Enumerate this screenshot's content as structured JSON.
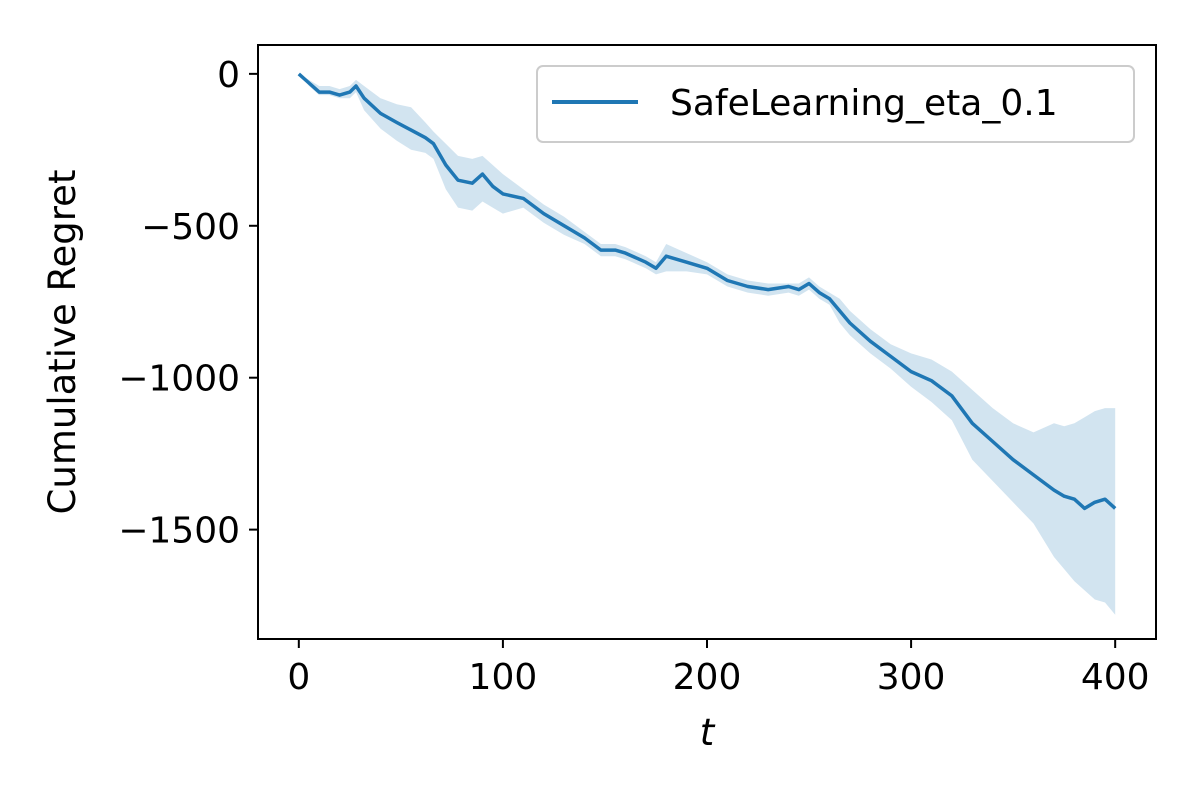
{
  "chart_data": {
    "type": "line",
    "title": "",
    "xlabel": "t",
    "ylabel": "Cumulative Regret",
    "xlim": [
      -20,
      420
    ],
    "ylim": [
      -1860,
      95
    ],
    "xticks": [
      0,
      100,
      200,
      300,
      400
    ],
    "xtick_labels": [
      "0",
      "100",
      "200",
      "300",
      "400"
    ],
    "yticks": [
      0,
      -500,
      -1000,
      -1500
    ],
    "ytick_labels": [
      "0",
      "−500",
      "−1000",
      "−1500"
    ],
    "grid": false,
    "legend_position": "top-right",
    "series": [
      {
        "name": "SafeLearning_eta_0.1",
        "color": "#1f77b4",
        "band_color": "#1f77b4",
        "band_opacity": 0.2,
        "x": [
          0,
          5,
          10,
          15,
          20,
          25,
          28,
          32,
          40,
          48,
          55,
          62,
          66,
          72,
          78,
          85,
          90,
          95,
          100,
          110,
          120,
          130,
          140,
          148,
          155,
          160,
          170,
          175,
          180,
          190,
          200,
          210,
          220,
          230,
          240,
          245,
          250,
          255,
          260,
          265,
          270,
          280,
          290,
          300,
          310,
          320,
          330,
          340,
          350,
          360,
          370,
          375,
          380,
          385,
          390,
          395,
          400
        ],
        "y": [
          0,
          -30,
          -60,
          -60,
          -70,
          -60,
          -40,
          -80,
          -130,
          -160,
          -185,
          -210,
          -230,
          -300,
          -350,
          -360,
          -330,
          -370,
          -395,
          -410,
          -460,
          -500,
          -540,
          -580,
          -580,
          -590,
          -620,
          -640,
          -600,
          -620,
          -640,
          -680,
          -700,
          -710,
          -700,
          -710,
          -690,
          -720,
          -740,
          -780,
          -820,
          -880,
          -930,
          -980,
          -1010,
          -1060,
          -1150,
          -1210,
          -1270,
          -1320,
          -1370,
          -1390,
          -1400,
          -1430,
          -1410,
          -1400,
          -1430
        ],
        "upper": [
          0,
          -20,
          -40,
          -40,
          -50,
          -40,
          -20,
          -40,
          -80,
          -100,
          -110,
          -160,
          -190,
          -230,
          -270,
          -280,
          -270,
          -300,
          -330,
          -380,
          -430,
          -470,
          -520,
          -560,
          -560,
          -570,
          -600,
          -620,
          -560,
          -590,
          -620,
          -660,
          -680,
          -690,
          -690,
          -690,
          -670,
          -700,
          -720,
          -740,
          -780,
          -840,
          -890,
          -920,
          -940,
          -980,
          -1040,
          -1100,
          -1150,
          -1180,
          -1150,
          -1160,
          -1150,
          -1130,
          -1110,
          -1100,
          -1100
        ],
        "lower": [
          0,
          -40,
          -70,
          -70,
          -80,
          -80,
          -60,
          -120,
          -180,
          -220,
          -250,
          -260,
          -280,
          -380,
          -440,
          -450,
          -420,
          -440,
          -460,
          -440,
          -490,
          -530,
          -560,
          -600,
          -600,
          -610,
          -640,
          -660,
          -650,
          -650,
          -660,
          -700,
          -720,
          -730,
          -720,
          -730,
          -710,
          -740,
          -760,
          -820,
          -860,
          -920,
          -970,
          -1030,
          -1080,
          -1140,
          -1270,
          -1340,
          -1410,
          -1480,
          -1590,
          -1630,
          -1670,
          -1700,
          -1730,
          -1740,
          -1780
        ]
      }
    ]
  }
}
